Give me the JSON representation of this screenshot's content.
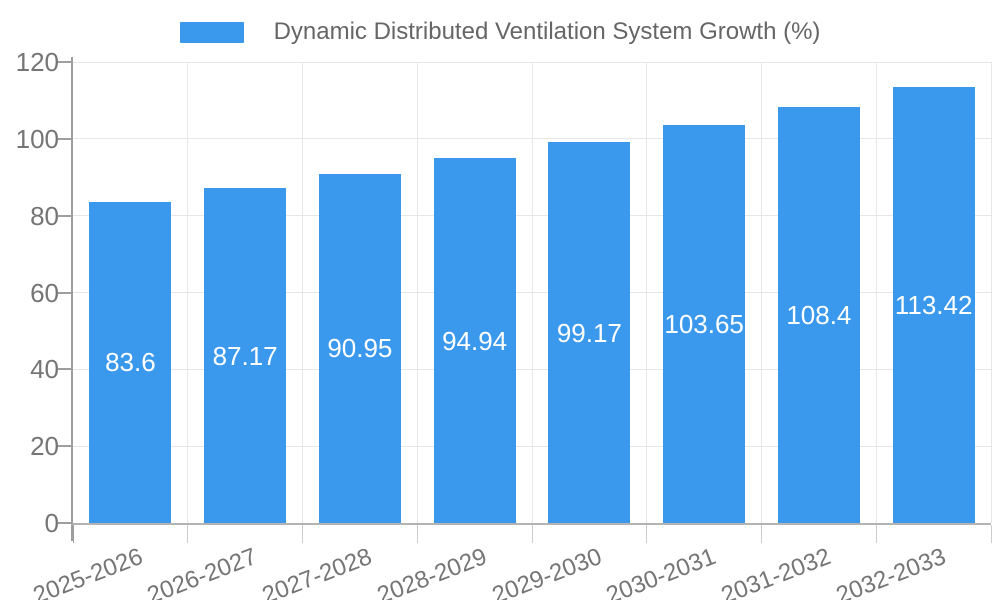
{
  "legend": {
    "swatch_color": "#3a99ec",
    "label": "Dynamic Distributed Ventilation System Growth (%)"
  },
  "chart_data": {
    "type": "bar",
    "title": "Dynamic Distributed Ventilation System Growth (%)",
    "categories": [
      "2025-2026",
      "2026-2027",
      "2027-2028",
      "2028-2029",
      "2029-2030",
      "2030-2031",
      "2031-2032",
      "2032-2033"
    ],
    "values": [
      83.6,
      87.17,
      90.95,
      94.94,
      99.17,
      103.65,
      108.4,
      113.42
    ],
    "value_labels": [
      "83.6",
      "87.17",
      "90.95",
      "94.94",
      "99.17",
      "103.65",
      "108.4",
      "113.42"
    ],
    "xlabel": "",
    "ylabel": "",
    "ylim": [
      0,
      120
    ],
    "yticks": [
      0,
      20,
      40,
      60,
      80,
      100,
      120
    ],
    "grid": true,
    "legend_position": "top-center",
    "colors": {
      "bar": "#3a99ec",
      "value_label": "#ffffff",
      "tick_label": "#757575",
      "legend_text": "#666666",
      "axis_line": "#9e9e9e",
      "bottom_axis_line": "#b3b3b3",
      "gridline": "#e7e7e7"
    }
  }
}
